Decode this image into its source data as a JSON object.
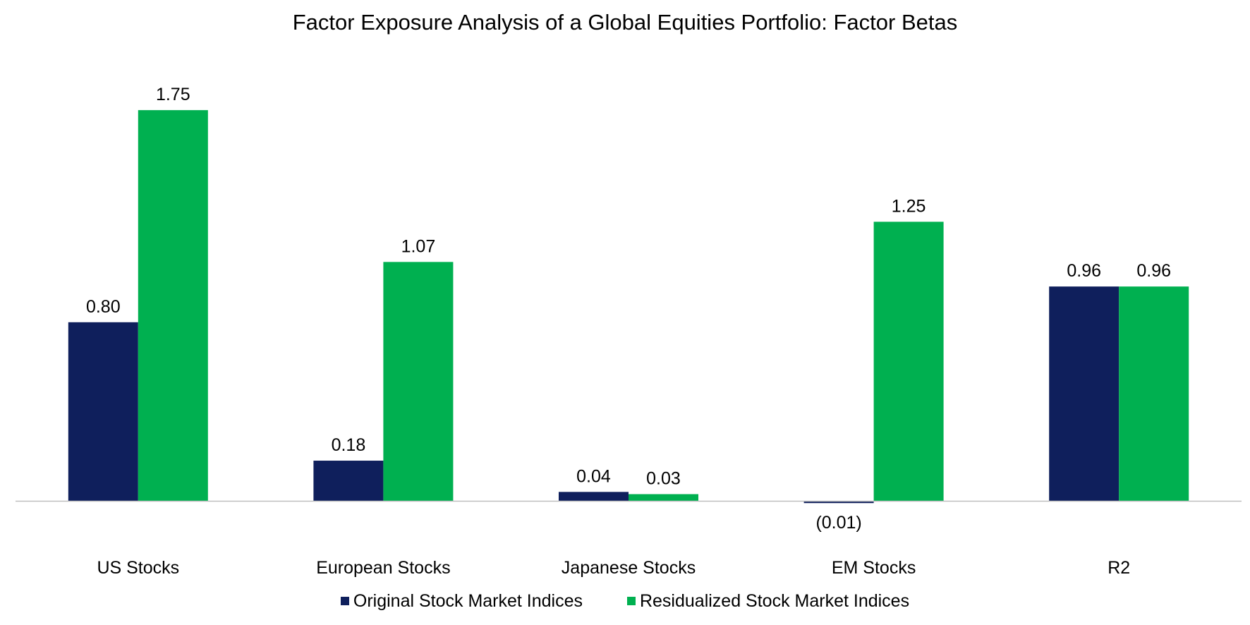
{
  "chart_data": {
    "type": "bar",
    "title": "Factor Exposure Analysis of a Global Equities Portfolio: Factor Betas",
    "categories": [
      "US Stocks",
      "European Stocks",
      "Japanese Stocks",
      "EM Stocks",
      "R2"
    ],
    "series": [
      {
        "name": "Original Stock Market Indices",
        "values": [
          0.8,
          0.18,
          0.04,
          -0.01,
          0.96
        ],
        "labels": [
          "0.80",
          "0.18",
          "0.04",
          "(0.01)",
          "0.96"
        ],
        "color": "#0F1F5C"
      },
      {
        "name": "Residualized Stock Market Indices",
        "values": [
          1.75,
          1.07,
          0.03,
          1.25,
          0.96
        ],
        "labels": [
          "1.75",
          "1.07",
          "0.03",
          "1.25",
          "0.96"
        ],
        "color": "#00B050"
      }
    ],
    "xlabel": "",
    "ylabel": "",
    "grid": false,
    "legend_position": "bottom"
  }
}
